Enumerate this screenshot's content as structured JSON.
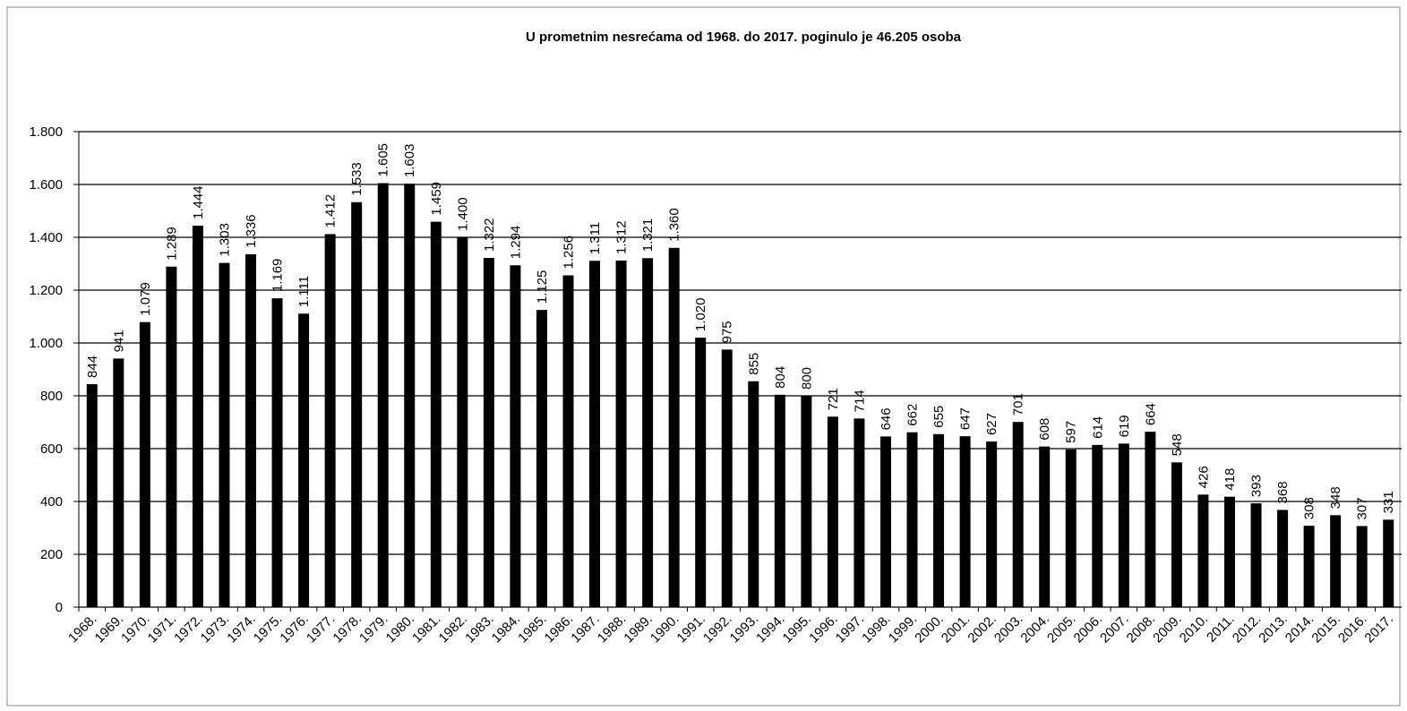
{
  "chart_data": {
    "type": "bar",
    "title": "U prometnim nesrećama od 1968. do 2017. poginulo je 46.205 osoba",
    "categories": [
      "1968.",
      "1969.",
      "1970.",
      "1971.",
      "1972.",
      "1973.",
      "1974.",
      "1975.",
      "1976.",
      "1977.",
      "1978.",
      "1979.",
      "1980.",
      "1981.",
      "1982.",
      "1983.",
      "1984.",
      "1985.",
      "1986.",
      "1987.",
      "1988.",
      "1989.",
      "1990.",
      "1991.",
      "1992.",
      "1993.",
      "1994.",
      "1995.",
      "1996.",
      "1997.",
      "1998.",
      "1999.",
      "2000.",
      "2001.",
      "2002.",
      "2003.",
      "2004.",
      "2005.",
      "2006.",
      "2007.",
      "2008.",
      "2009.",
      "2010.",
      "2011.",
      "2012.",
      "2013.",
      "2014.",
      "2015.",
      "2016.",
      "2017."
    ],
    "values": [
      844,
      941,
      1079,
      1289,
      1444,
      1303,
      1336,
      1169,
      1111,
      1412,
      1533,
      1605,
      1603,
      1459,
      1400,
      1322,
      1294,
      1125,
      1256,
      1311,
      1312,
      1321,
      1360,
      1020,
      975,
      855,
      804,
      800,
      721,
      714,
      646,
      662,
      655,
      647,
      627,
      701,
      608,
      597,
      614,
      619,
      664,
      548,
      426,
      418,
      393,
      368,
      308,
      348,
      307,
      331
    ],
    "value_labels": [
      "844",
      "941",
      "1.079",
      "1.289",
      "1.444",
      "1.303",
      "1.336",
      "1.169",
      "1.111",
      "1.412",
      "1.533",
      "1.605",
      "1.603",
      "1.459",
      "1.400",
      "1.322",
      "1.294",
      "1.125",
      "1.256",
      "1.311",
      "1.312",
      "1.321",
      "1.360",
      "1.020",
      "975",
      "855",
      "804",
      "800",
      "721",
      "714",
      "646",
      "662",
      "655",
      "647",
      "627",
      "701",
      "608",
      "597",
      "614",
      "619",
      "664",
      "548",
      "426",
      "418",
      "393",
      "368",
      "308",
      "348",
      "307",
      "331"
    ],
    "color": "#000000",
    "ylim": [
      0,
      1800
    ],
    "yticks": [
      0,
      200,
      400,
      600,
      800,
      {
        "value": 1000,
        "label": "1.000"
      },
      {
        "value": 1200,
        "label": "1.200"
      },
      {
        "value": 1400,
        "label": "1.400"
      },
      {
        "value": 1600,
        "label": "1.600"
      },
      {
        "value": 1800,
        "label": "1.800"
      }
    ],
    "grid": true
  }
}
